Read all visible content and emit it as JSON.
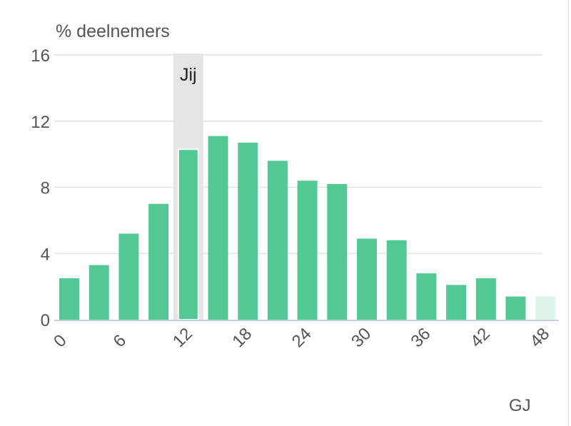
{
  "chart_data": {
    "type": "bar",
    "ylabel": "% deelnemers",
    "xlabel": "GJ",
    "ylim": [
      0,
      16
    ],
    "yticks": [
      0,
      4,
      8,
      12,
      16
    ],
    "xticks": [
      "0",
      "6",
      "12",
      "18",
      "24",
      "30",
      "36",
      "42",
      "48"
    ],
    "x": [
      0,
      3,
      6,
      9,
      12,
      15,
      18,
      21,
      24,
      27,
      30,
      33,
      36,
      39,
      42,
      45,
      48
    ],
    "values": [
      2.5,
      3.3,
      5.2,
      7.0,
      10.3,
      11.1,
      10.7,
      9.6,
      8.4,
      8.2,
      4.9,
      4.8,
      2.8,
      2.1,
      2.5,
      1.4,
      1.4
    ],
    "highlight": {
      "x": 12,
      "label": "Jij"
    },
    "grid": true,
    "colors": {
      "bar": "#52c995",
      "bar_faded": "#dff5ea",
      "highlight_band": "#e5e5e5",
      "grid": "#e3e3e3",
      "axis": "#c9ccd6"
    }
  }
}
